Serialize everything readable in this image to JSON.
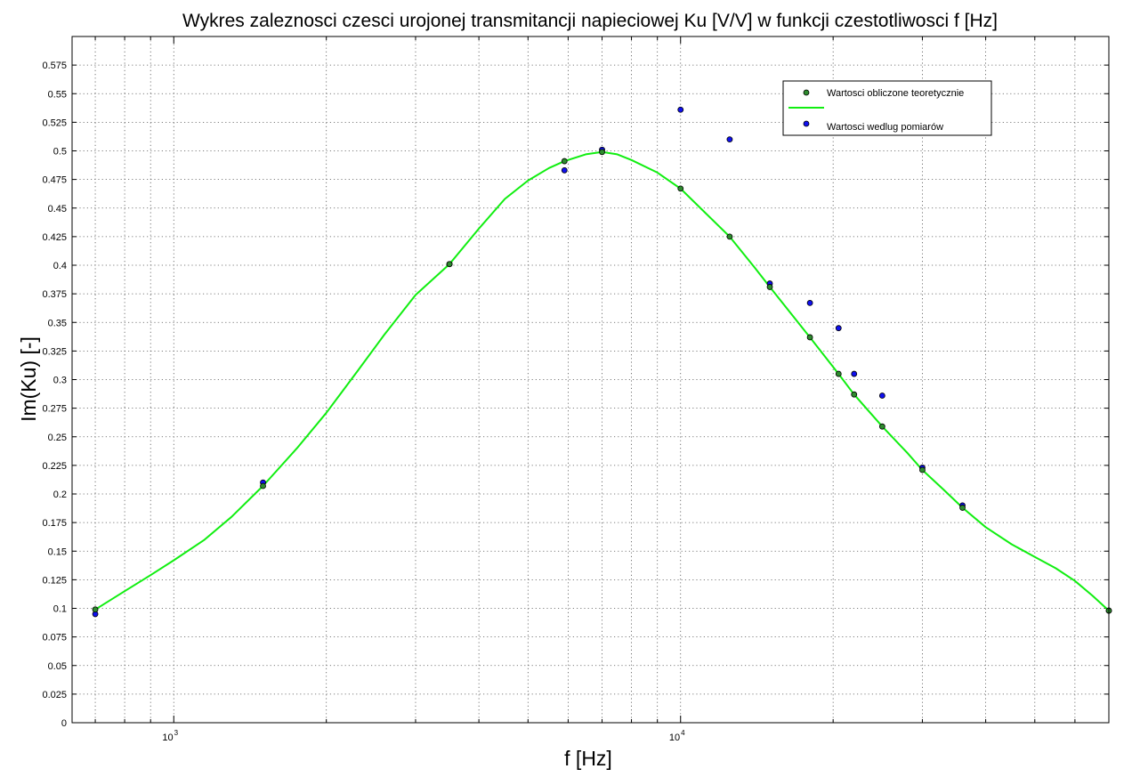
{
  "chart_data": {
    "type": "scatter",
    "title": "Wykres zaleznosci czesci urojonej transmitancji napieciowej Ku [V/V] w funkcji czestotliwosci f [Hz]",
    "xlabel": "f [Hz]",
    "ylabel": "Im(Ku) [-]",
    "x_scale": "log",
    "xlim": [
      630,
      70000
    ],
    "ylim": [
      0,
      0.6
    ],
    "x_ticks": [
      {
        "value": 1000,
        "base": "10",
        "exp": "3"
      },
      {
        "value": 10000,
        "base": "10",
        "exp": "4"
      }
    ],
    "y_ticks": [
      "0",
      "0.025",
      "0.05",
      "0.075",
      "0.1",
      "0.125",
      "0.15",
      "0.175",
      "0.2",
      "0.225",
      "0.25",
      "0.275",
      "0.3",
      "0.325",
      "0.35",
      "0.375",
      "0.4",
      "0.425",
      "0.45",
      "0.475",
      "0.5",
      "0.525",
      "0.55",
      "0.575"
    ],
    "grid": true,
    "legend_position": "top-right",
    "colors": {
      "theory_marker": "#2e8b2e",
      "theory_line": "#11ee11",
      "measured_marker": "#1010ee",
      "axes": "#000000"
    },
    "series": [
      {
        "name": "Wartosci obliczone teoretycznie",
        "style": "marker",
        "x": [
          700,
          1500,
          3500,
          5900,
          7000,
          10000,
          12500,
          15000,
          18000,
          20500,
          22000,
          25000,
          30000,
          36000,
          70000
        ],
        "y": [
          0.099,
          0.207,
          0.401,
          0.491,
          0.499,
          0.467,
          0.425,
          0.381,
          0.337,
          0.305,
          0.287,
          0.259,
          0.221,
          0.188,
          0.098
        ]
      },
      {
        "name": "",
        "style": "line",
        "x": [
          700,
          800,
          900,
          1000,
          1150,
          1300,
          1500,
          1750,
          2000,
          2300,
          2600,
          3000,
          3500,
          4000,
          4500,
          5000,
          5500,
          5900,
          6500,
          7000,
          7500,
          8000,
          9000,
          10000,
          11000,
          12500,
          14000,
          15000,
          16500,
          18000,
          20500,
          22000,
          25000,
          28000,
          30000,
          33000,
          36000,
          40000,
          45000,
          50000,
          55000,
          60000,
          65000,
          70000
        ],
        "y": [
          0.099,
          0.115,
          0.129,
          0.142,
          0.16,
          0.18,
          0.207,
          0.24,
          0.271,
          0.307,
          0.339,
          0.374,
          0.401,
          0.432,
          0.458,
          0.474,
          0.485,
          0.491,
          0.497,
          0.499,
          0.497,
          0.492,
          0.481,
          0.467,
          0.449,
          0.425,
          0.398,
          0.381,
          0.358,
          0.337,
          0.305,
          0.287,
          0.259,
          0.236,
          0.221,
          0.204,
          0.188,
          0.171,
          0.156,
          0.145,
          0.135,
          0.124,
          0.111,
          0.098
        ]
      },
      {
        "name": "Wartosci wedlug pomiarów",
        "style": "marker",
        "x": [
          700,
          1500,
          3500,
          5900,
          7000,
          10000,
          12500,
          15000,
          18000,
          20500,
          22000,
          25000,
          30000,
          36000,
          70000
        ],
        "y": [
          0.095,
          0.21,
          0.401,
          0.483,
          0.501,
          0.536,
          0.51,
          0.384,
          0.367,
          0.345,
          0.305,
          0.286,
          0.223,
          0.19,
          0.098
        ]
      }
    ]
  }
}
